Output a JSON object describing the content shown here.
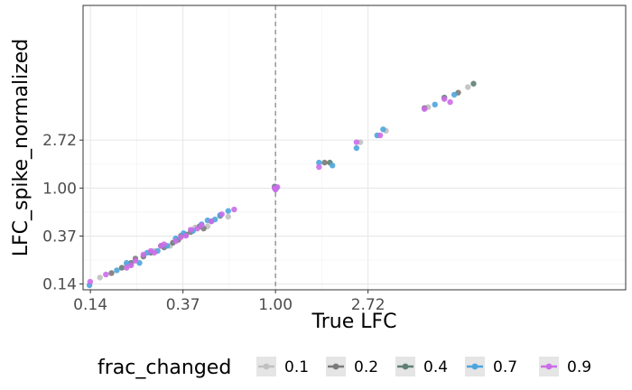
{
  "chart_data": {
    "type": "scatter",
    "xlabel": "True LFC",
    "ylabel": "LFC_spike_normalized",
    "scale": "log",
    "xlim": [
      0.125,
      44
    ],
    "ylim": [
      0.12,
      45
    ],
    "x_ticks": [
      {
        "value": 0.1353,
        "label": "0.14"
      },
      {
        "value": 0.3679,
        "label": "0.37"
      },
      {
        "value": 1.0,
        "label": "1.00"
      },
      {
        "value": 2.7183,
        "label": "2.72"
      }
    ],
    "y_ticks": [
      {
        "value": 0.1353,
        "label": "0.14"
      },
      {
        "value": 0.3679,
        "label": "0.37"
      },
      {
        "value": 1.0,
        "label": "1.00"
      },
      {
        "value": 2.7183,
        "label": "2.72"
      }
    ],
    "reference_line": {
      "x": 1.0,
      "style": "dashed"
    },
    "legend": {
      "title": "frac_changed",
      "position": "bottom",
      "entries": [
        {
          "label": "0.1",
          "color": "#c0c0c0"
        },
        {
          "label": "0.2",
          "color": "#7a7a7a"
        },
        {
          "label": "0.4",
          "color": "#5f7f74"
        },
        {
          "label": "0.7",
          "color": "#4ca5dd"
        },
        {
          "label": "0.9",
          "color": "#cc6de8"
        }
      ]
    },
    "grid": true,
    "series": [
      {
        "name": "0.1",
        "color": "#c0c0c0",
        "points": [
          [
            0.15,
            0.155
          ],
          [
            0.21,
            0.2
          ],
          [
            0.32,
            0.3
          ],
          [
            0.48,
            0.45
          ],
          [
            0.6,
            0.55
          ],
          [
            0.2,
            0.2
          ],
          [
            1.0,
            1.0
          ],
          [
            1.0,
            1.02
          ],
          [
            2.5,
            2.6
          ],
          [
            3.3,
            3.3
          ],
          [
            5.2,
            5.4
          ],
          [
            8.0,
            8.2
          ],
          [
            0.27,
            0.27
          ],
          [
            0.42,
            0.44
          ]
        ]
      },
      {
        "name": "0.2",
        "color": "#7a7a7a",
        "points": [
          [
            0.17,
            0.17
          ],
          [
            0.24,
            0.24
          ],
          [
            0.35,
            0.34
          ],
          [
            0.46,
            0.43
          ],
          [
            0.55,
            0.56
          ],
          [
            0.3,
            0.29
          ],
          [
            0.4,
            0.4
          ],
          [
            1.0,
            0.98
          ],
          [
            1.0,
            1.01
          ],
          [
            1.7,
            1.7
          ],
          [
            5.0,
            5.3
          ],
          [
            7.2,
            7.3
          ],
          [
            0.22,
            0.23
          ],
          [
            0.36,
            0.37
          ]
        ]
      },
      {
        "name": "0.4",
        "color": "#5f7f74",
        "points": [
          [
            0.19,
            0.19
          ],
          [
            0.26,
            0.26
          ],
          [
            0.38,
            0.38
          ],
          [
            0.5,
            0.5
          ],
          [
            0.33,
            0.32
          ],
          [
            0.44,
            0.45
          ],
          [
            1.0,
            1.0
          ],
          [
            0.99,
            1.03
          ],
          [
            1.8,
            1.7
          ],
          [
            6.2,
            6.6
          ],
          [
            8.5,
            8.8
          ],
          [
            0.21,
            0.21
          ],
          [
            0.29,
            0.3
          ]
        ]
      },
      {
        "name": "0.7",
        "color": "#4ca5dd",
        "points": [
          [
            0.134,
            0.132
          ],
          [
            0.2,
            0.21
          ],
          [
            0.23,
            0.21
          ],
          [
            0.28,
            0.27
          ],
          [
            0.37,
            0.39
          ],
          [
            0.45,
            0.47
          ],
          [
            0.52,
            0.52
          ],
          [
            0.6,
            0.62
          ],
          [
            0.34,
            0.35
          ],
          [
            0.41,
            0.41
          ],
          [
            0.25,
            0.26
          ],
          [
            0.18,
            0.18
          ],
          [
            1.0,
            0.99
          ],
          [
            1.01,
            1.0
          ],
          [
            1.6,
            1.7
          ],
          [
            1.85,
            1.6
          ],
          [
            2.4,
            2.3
          ],
          [
            3.0,
            3.0
          ],
          [
            3.2,
            3.4
          ],
          [
            5.6,
            5.7
          ],
          [
            6.9,
            7.0
          ],
          [
            0.55,
            0.57
          ],
          [
            0.48,
            0.51
          ],
          [
            0.31,
            0.3
          ]
        ]
      },
      {
        "name": "0.9",
        "color": "#cc6de8",
        "points": [
          [
            0.135,
            0.142
          ],
          [
            0.16,
            0.165
          ],
          [
            0.2,
            0.19
          ],
          [
            0.24,
            0.25
          ],
          [
            0.27,
            0.26
          ],
          [
            0.3,
            0.31
          ],
          [
            0.34,
            0.33
          ],
          [
            0.4,
            0.42
          ],
          [
            0.45,
            0.46
          ],
          [
            0.5,
            0.5
          ],
          [
            0.56,
            0.58
          ],
          [
            0.64,
            0.64
          ],
          [
            0.22,
            0.22
          ],
          [
            0.26,
            0.27
          ],
          [
            0.36,
            0.36
          ],
          [
            0.43,
            0.43
          ],
          [
            0.99,
            1.0
          ],
          [
            1.0,
            0.97
          ],
          [
            1.02,
            1.02
          ],
          [
            1.6,
            1.55
          ],
          [
            2.4,
            2.6
          ],
          [
            3.1,
            3.0
          ],
          [
            5.0,
            5.2
          ],
          [
            6.2,
            6.4
          ],
          [
            6.6,
            6.0
          ],
          [
            0.21,
            0.2
          ],
          [
            0.29,
            0.3
          ],
          [
            0.38,
            0.37
          ]
        ]
      }
    ]
  }
}
